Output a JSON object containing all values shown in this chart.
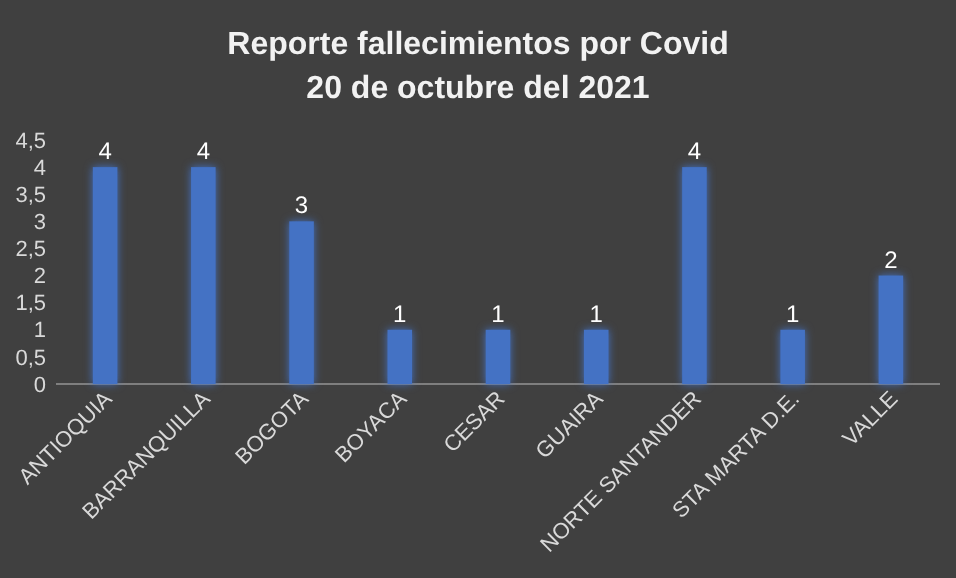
{
  "chart_data": {
    "type": "bar",
    "title": "Reporte fallecimientos por Covid\n20 de octubre del 2021",
    "categories": [
      "ANTIOQUIA",
      "BARRANQUILLA",
      "BOGOTA",
      "BOYACA",
      "CESAR",
      "GUAIRA",
      "NORTE SANTANDER",
      "STA MARTA D.E.",
      "VALLE"
    ],
    "values": [
      4,
      4,
      3,
      1,
      1,
      1,
      4,
      1,
      2
    ],
    "color": "#4472c4",
    "ylim": [
      0,
      4.5
    ],
    "yticks": [
      0,
      {
        "value": 0.5,
        "label": "0,5"
      },
      1,
      {
        "value": 1.5,
        "label": "1,5"
      },
      2,
      {
        "value": 2.5,
        "label": "2,5"
      },
      3,
      {
        "value": 3.5,
        "label": "3,5"
      },
      4,
      {
        "value": 4.5,
        "label": "4,5"
      }
    ],
    "data_labels": true,
    "grid": false
  }
}
